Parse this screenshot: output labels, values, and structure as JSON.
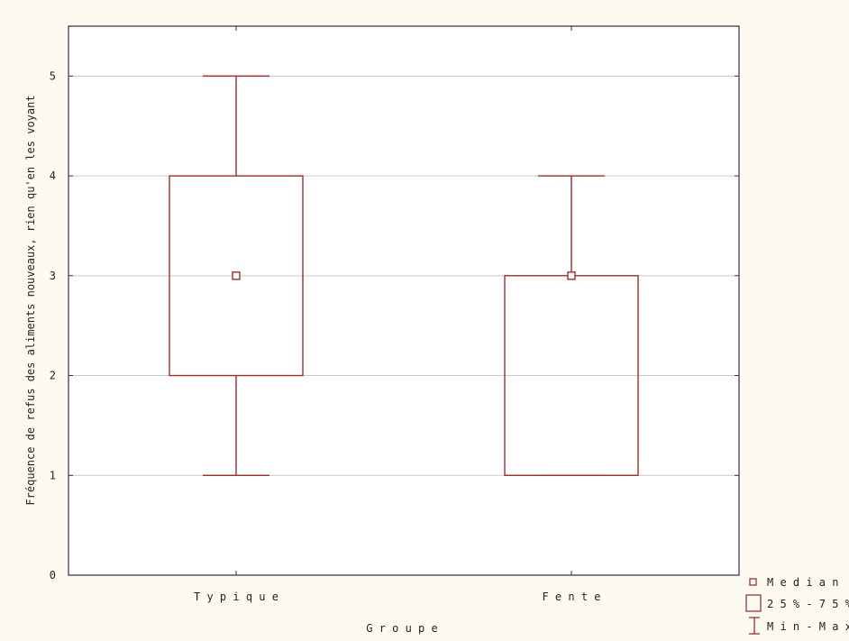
{
  "chart_data": {
    "type": "box",
    "xlabel": "G r o u p e",
    "ylabel": "Fréquence de refus des aliments nouveaux, rien qu'en les voyant",
    "ylim": [
      0,
      5.5
    ],
    "yticks": [
      0,
      1,
      2,
      3,
      4,
      5
    ],
    "grid": true,
    "legend_position": "bottom-right",
    "categories": [
      "T y p i q u e",
      "F e n t e"
    ],
    "boxes": [
      {
        "min": 1,
        "q1": 2,
        "median": 3,
        "q3": 4,
        "max": 5
      },
      {
        "min": 1,
        "q1": 1,
        "median": 3,
        "q3": 3,
        "max": 4
      }
    ],
    "legend": {
      "median": "M e d i a n",
      "box": "2 5 % - 7 5 %",
      "whisker": "M i n - M a x"
    },
    "colors": {
      "mark": "#9b3030",
      "grid": "#c9c9c9",
      "axis": "#333333",
      "plot_bg": "#ffffff",
      "page_bg": "#fdfbf1"
    }
  }
}
